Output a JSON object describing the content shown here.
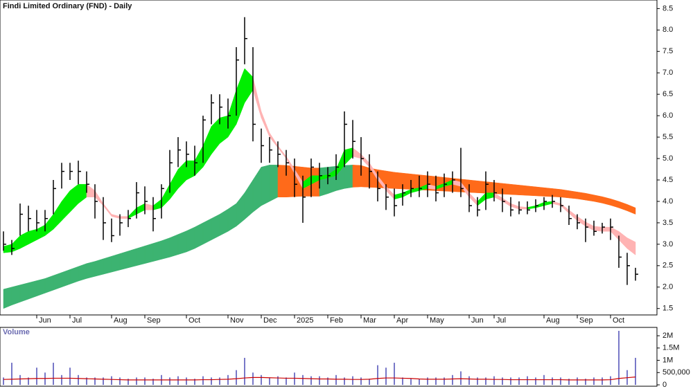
{
  "chart_data": [
    {
      "type": "ohlc",
      "title": "Findi Limited Ordinary (FND) - Daily",
      "categories": [
        null,
        null,
        null,
        null,
        "Jun",
        null,
        null,
        null,
        "Jul",
        null,
        null,
        null,
        null,
        "Aug",
        null,
        null,
        null,
        "Sep",
        null,
        null,
        null,
        null,
        "Oct",
        null,
        null,
        null,
        null,
        "Nov",
        null,
        null,
        null,
        "Dec",
        null,
        null,
        null,
        "2025",
        null,
        null,
        null,
        "Feb",
        null,
        null,
        null,
        "Mar",
        null,
        null,
        null,
        "Apr",
        null,
        null,
        null,
        "May",
        null,
        null,
        null,
        null,
        "Jun",
        null,
        null,
        "Jul",
        null,
        null,
        null,
        null,
        null,
        "Aug",
        null,
        null,
        null,
        "Sep",
        null,
        null,
        null,
        "Oct",
        null,
        null,
        null
      ],
      "high": [
        3.3,
        3.1,
        3.95,
        3.9,
        3.8,
        3.8,
        4.5,
        4.9,
        4.9,
        4.95,
        4.7,
        4.4,
        4.1,
        3.6,
        3.7,
        3.8,
        4.45,
        4.35,
        4.1,
        4.4,
        5.2,
        5.5,
        5.4,
        5.3,
        6.0,
        6.5,
        6.5,
        6.4,
        7.6,
        8.3,
        7.6,
        5.7,
        5.5,
        5.4,
        5.2,
        5.0,
        4.6,
        5.0,
        4.9,
        4.8,
        5.1,
        6.1,
        5.9,
        5.5,
        5.1,
        4.7,
        4.4,
        4.3,
        4.4,
        4.5,
        4.6,
        4.7,
        4.6,
        4.65,
        4.7,
        5.25,
        4.4,
        4.1,
        4.7,
        4.5,
        4.3,
        4.1,
        4.0,
        4.0,
        4.05,
        4.1,
        4.15,
        4.1,
        3.9,
        3.7,
        3.6,
        3.55,
        3.5,
        3.6,
        3.2,
        2.8,
        2.45
      ],
      "low": [
        2.85,
        2.75,
        3.2,
        3.3,
        3.3,
        3.3,
        3.7,
        4.3,
        4.5,
        4.4,
        4.2,
        3.6,
        3.1,
        3.05,
        3.2,
        3.4,
        3.6,
        3.7,
        3.3,
        3.6,
        4.2,
        4.8,
        4.8,
        4.6,
        4.9,
        5.8,
        5.8,
        5.7,
        6.0,
        7.2,
        5.4,
        4.9,
        4.9,
        4.8,
        4.6,
        4.1,
        3.5,
        4.1,
        4.3,
        4.4,
        4.5,
        4.8,
        5.0,
        4.6,
        4.3,
        4.0,
        3.8,
        3.65,
        3.9,
        4.1,
        4.1,
        4.1,
        4.0,
        4.1,
        4.2,
        4.1,
        3.75,
        3.65,
        3.8,
        4.0,
        3.75,
        3.65,
        3.7,
        3.7,
        3.75,
        3.8,
        3.85,
        3.75,
        3.45,
        3.35,
        3.05,
        3.2,
        3.25,
        3.1,
        2.45,
        2.05,
        2.15
      ],
      "close": [
        3.0,
        2.9,
        3.7,
        3.6,
        3.5,
        3.6,
        4.3,
        4.7,
        4.7,
        4.7,
        4.4,
        4.0,
        3.5,
        3.2,
        3.5,
        3.6,
        4.2,
        4.0,
        3.6,
        4.3,
        4.9,
        5.2,
        5.1,
        4.9,
        5.9,
        6.3,
        6.2,
        6.0,
        7.3,
        7.8,
        5.8,
        5.3,
        5.2,
        5.1,
        4.9,
        4.4,
        4.1,
        4.8,
        4.6,
        4.6,
        4.8,
        5.8,
        5.4,
        5.0,
        4.7,
        4.3,
        4.1,
        3.9,
        4.2,
        4.3,
        4.3,
        4.4,
        4.2,
        4.4,
        4.5,
        4.3,
        3.9,
        3.8,
        4.4,
        4.2,
        4.0,
        3.8,
        3.8,
        3.8,
        3.9,
        4.0,
        4.0,
        3.9,
        3.6,
        3.5,
        3.4,
        3.3,
        3.4,
        3.4,
        2.7,
        2.5,
        2.3
      ],
      "color": "#000000",
      "bands": [
        {
          "rise_color": "#3cb371",
          "fall_color": "#ff6a1a",
          "upper": [
            1.95,
            2.0,
            2.05,
            2.1,
            2.15,
            2.2,
            2.27,
            2.34,
            2.41,
            2.48,
            2.55,
            2.6,
            2.66,
            2.72,
            2.78,
            2.84,
            2.9,
            2.96,
            3.02,
            3.08,
            3.15,
            3.23,
            3.31,
            3.4,
            3.5,
            3.6,
            3.7,
            3.82,
            3.95,
            4.2,
            4.5,
            4.8,
            4.85,
            4.85,
            4.84,
            4.82,
            4.8,
            4.78,
            4.78,
            4.8,
            4.82,
            4.84,
            4.85,
            4.84,
            4.78,
            4.74,
            4.71,
            4.68,
            4.66,
            4.64,
            4.62,
            4.6,
            4.58,
            4.56,
            4.54,
            4.52,
            4.5,
            4.48,
            4.46,
            4.44,
            4.42,
            4.4,
            4.38,
            4.36,
            4.34,
            4.32,
            4.3,
            4.28,
            4.25,
            4.22,
            4.19,
            4.15,
            4.11,
            4.06,
            4.0,
            3.93,
            3.85
          ],
          "lower": [
            1.5,
            1.58,
            1.65,
            1.72,
            1.79,
            1.86,
            1.93,
            2.0,
            2.07,
            2.14,
            2.2,
            2.25,
            2.3,
            2.35,
            2.4,
            2.45,
            2.5,
            2.55,
            2.6,
            2.65,
            2.7,
            2.76,
            2.82,
            2.9,
            3.0,
            3.1,
            3.2,
            3.3,
            3.42,
            3.58,
            3.75,
            3.9,
            4.0,
            4.1,
            4.1,
            4.11,
            4.12,
            4.12,
            4.12,
            4.18,
            4.25,
            4.3,
            4.33,
            4.34,
            4.33,
            4.32,
            4.31,
            4.3,
            4.29,
            4.28,
            4.27,
            4.26,
            4.25,
            4.24,
            4.23,
            4.22,
            4.21,
            4.2,
            4.19,
            4.18,
            4.17,
            4.16,
            4.15,
            4.14,
            4.13,
            4.12,
            4.11,
            4.1,
            4.08,
            4.06,
            4.03,
            4.0,
            3.96,
            3.91,
            3.85,
            3.78,
            3.7
          ]
        },
        {
          "rise_color": "#00ee00",
          "fall_color": "#ffb3b3",
          "upper": [
            2.95,
            3.0,
            3.2,
            3.3,
            3.35,
            3.45,
            3.7,
            4.0,
            4.25,
            4.4,
            4.4,
            4.25,
            3.95,
            3.7,
            3.65,
            3.65,
            3.85,
            3.95,
            3.9,
            4.05,
            4.4,
            4.75,
            4.95,
            4.95,
            5.3,
            5.75,
            5.95,
            6.0,
            6.6,
            7.1,
            6.9,
            6.1,
            5.6,
            5.3,
            5.05,
            4.75,
            4.45,
            4.6,
            4.6,
            4.62,
            4.75,
            5.2,
            5.25,
            5.1,
            4.9,
            4.6,
            4.35,
            4.15,
            4.2,
            4.28,
            4.32,
            4.4,
            4.35,
            4.42,
            4.5,
            4.45,
            4.2,
            4.0,
            4.2,
            4.2,
            4.08,
            3.95,
            3.88,
            3.86,
            3.9,
            3.98,
            4.0,
            3.95,
            3.8,
            3.65,
            3.52,
            3.42,
            3.4,
            3.4,
            3.3,
            3.15,
            3.05
          ],
          "lower": [
            2.8,
            2.82,
            2.9,
            3.0,
            3.1,
            3.2,
            3.35,
            3.55,
            3.75,
            3.95,
            4.1,
            4.1,
            3.9,
            3.65,
            3.6,
            3.6,
            3.7,
            3.8,
            3.8,
            3.85,
            4.05,
            4.3,
            4.5,
            4.6,
            4.8,
            5.1,
            5.35,
            5.5,
            5.8,
            6.3,
            6.6,
            5.95,
            5.5,
            5.25,
            5.0,
            4.65,
            4.3,
            4.4,
            4.5,
            4.55,
            4.6,
            4.85,
            5.05,
            5.0,
            4.8,
            4.5,
            4.25,
            4.05,
            4.1,
            4.2,
            4.25,
            4.3,
            4.28,
            4.35,
            4.4,
            4.35,
            4.1,
            3.9,
            4.05,
            4.1,
            4.0,
            3.88,
            3.82,
            3.82,
            3.85,
            3.9,
            3.95,
            3.9,
            3.72,
            3.55,
            3.42,
            3.32,
            3.3,
            3.3,
            3.1,
            2.9,
            2.75
          ]
        }
      ],
      "ylim": [
        1.35,
        8.7
      ],
      "yticks": [
        1.5,
        {
          "value": 2,
          "label": "2.0"
        },
        2.5,
        {
          "value": 3,
          "label": "3.0"
        },
        3.5,
        {
          "value": 4,
          "label": "4.0"
        },
        4.5,
        {
          "value": 5,
          "label": "5.0"
        },
        5.5,
        {
          "value": 6,
          "label": "6.0"
        },
        6.5,
        {
          "value": 7,
          "label": "7.0"
        },
        7.5,
        {
          "value": 8,
          "label": "8.0"
        },
        8.5
      ]
    },
    {
      "type": "bar",
      "title": "Volume",
      "color": "#7878c8",
      "values": [
        300000,
        900000,
        400000,
        300000,
        700000,
        500000,
        900000,
        400000,
        700000,
        400000,
        300000,
        300000,
        300000,
        350000,
        300000,
        250000,
        300000,
        300000,
        250000,
        400000,
        300000,
        350000,
        300000,
        250000,
        350000,
        300000,
        300000,
        400000,
        600000,
        1100000,
        500000,
        400000,
        300000,
        350000,
        300000,
        500000,
        400000,
        350000,
        350000,
        300000,
        400000,
        300000,
        350000,
        300000,
        250000,
        800000,
        700000,
        900000,
        300000,
        250000,
        250000,
        300000,
        300000,
        300000,
        400000,
        550000,
        350000,
        300000,
        300000,
        350000,
        300000,
        300000,
        300000,
        350000,
        300000,
        400000,
        300000,
        300000,
        250000,
        300000,
        250000,
        300000,
        300000,
        350000,
        2200000,
        600000,
        1100000
      ],
      "average": {
        "color": "#cc0000",
        "values": [
          220000,
          230000,
          240000,
          250000,
          260000,
          260000,
          270000,
          270000,
          270000,
          260000,
          250000,
          240000,
          230000,
          220000,
          210000,
          200000,
          200000,
          200000,
          200000,
          200000,
          200000,
          200000,
          200000,
          200000,
          210000,
          210000,
          220000,
          230000,
          250000,
          280000,
          300000,
          300000,
          290000,
          280000,
          270000,
          270000,
          260000,
          250000,
          240000,
          240000,
          230000,
          230000,
          220000,
          220000,
          230000,
          260000,
          280000,
          280000,
          270000,
          260000,
          240000,
          230000,
          230000,
          230000,
          240000,
          250000,
          240000,
          230000,
          230000,
          220000,
          220000,
          210000,
          210000,
          210000,
          210000,
          210000,
          210000,
          210000,
          200000,
          200000,
          200000,
          200000,
          200000,
          210000,
          260000,
          290000,
          320000
        ]
      },
      "ylim": [
        0,
        2340000
      ],
      "yticks": [
        0,
        {
          "value": 500000,
          "label": "500,000"
        },
        {
          "value": 1000000,
          "label": "1M"
        },
        {
          "value": 1500000,
          "label": "1.5M"
        },
        {
          "value": 2000000,
          "label": "2M"
        }
      ]
    }
  ]
}
